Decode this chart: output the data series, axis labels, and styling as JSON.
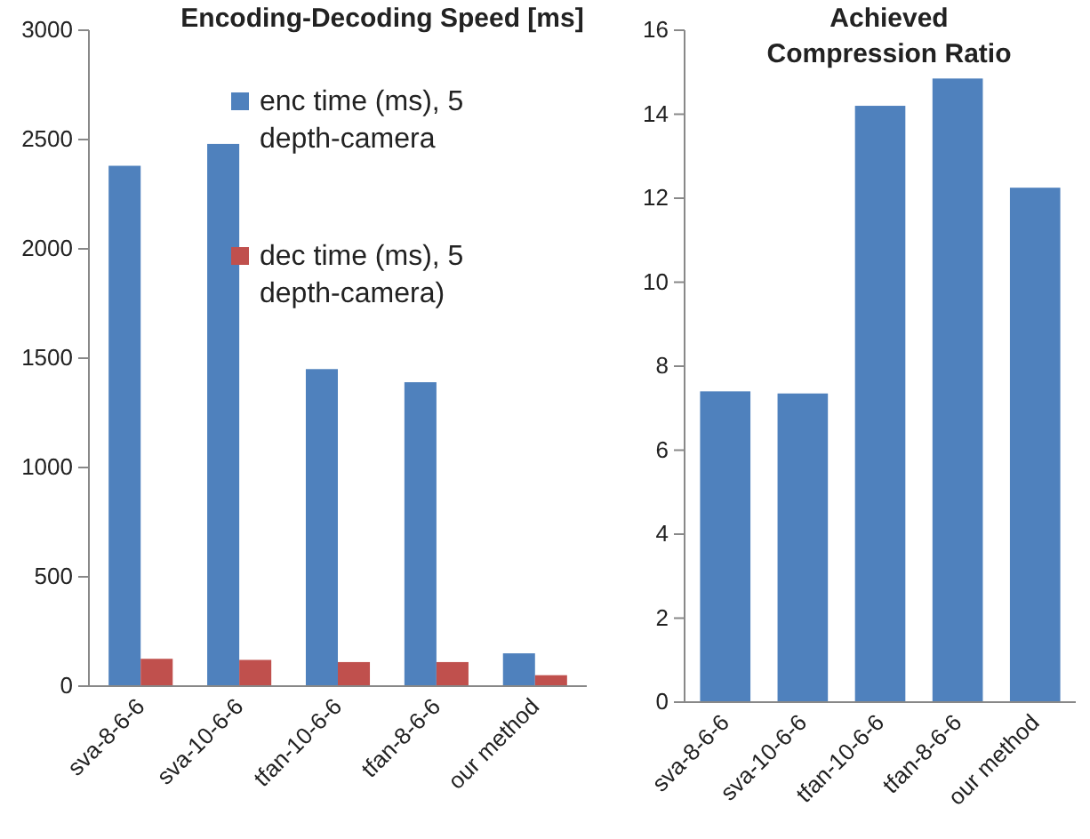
{
  "chart_data": [
    {
      "type": "bar",
      "title": "Encoding-Decoding Speed [ms]",
      "categories": [
        "sva-8-6-6",
        "sva-10-6-6",
        "tfan-10-6-6",
        "tfan-8-6-6",
        "our method"
      ],
      "series": [
        {
          "name": "enc time (ms), 5 depth-camera",
          "color": "#4f81bd",
          "values": [
            2380,
            2480,
            1450,
            1390,
            150
          ]
        },
        {
          "name": "dec time (ms), 5 depth-camera)",
          "color": "#c0504d",
          "values": [
            125,
            120,
            110,
            110,
            50
          ]
        }
      ],
      "ylim": [
        0,
        3000
      ],
      "yticks": [
        0,
        500,
        1000,
        1500,
        2000,
        2500,
        3000
      ],
      "grid": false,
      "legend": "top right"
    },
    {
      "type": "bar",
      "title": "Achieved Compression Ratio",
      "categories": [
        "sva-8-6-6",
        "sva-10-6-6",
        "tfan-10-6-6",
        "tfan-8-6-6",
        "our method"
      ],
      "series": [
        {
          "color": "#4f81bd",
          "values": [
            7.4,
            7.35,
            14.2,
            14.85,
            12.25
          ]
        }
      ],
      "ylim": [
        0,
        16
      ],
      "yticks": [
        0,
        2,
        4,
        6,
        8,
        10,
        12,
        14,
        16
      ],
      "grid": false,
      "legend": false
    }
  ]
}
